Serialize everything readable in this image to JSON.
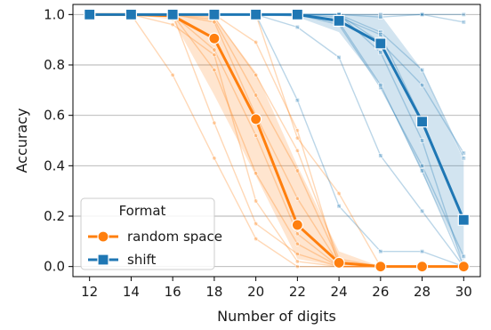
{
  "chart_data": {
    "type": "line",
    "xlabel": "Number of digits",
    "ylabel": "Accuracy",
    "x": [
      12,
      14,
      16,
      18,
      20,
      22,
      24,
      26,
      28,
      30
    ],
    "xlim": [
      11.2,
      30.8
    ],
    "ylim": [
      -0.04,
      1.04
    ],
    "xticks": [
      "12",
      "14",
      "16",
      "18",
      "20",
      "22",
      "24",
      "26",
      "28",
      "30"
    ],
    "yticks": [
      "0.0",
      "0.2",
      "0.4",
      "0.6",
      "0.8",
      "1.0"
    ],
    "ytick_values": [
      0.0,
      0.2,
      0.4,
      0.6,
      0.8,
      1.0
    ],
    "grid": "horizontal",
    "legend": {
      "title": "Format",
      "placement": "lower-left",
      "entries": [
        "random space",
        "shift"
      ]
    },
    "series": [
      {
        "name": "random space",
        "color": "#ff7f0e",
        "marker": "circle",
        "values": [
          1.0,
          1.0,
          0.995,
          0.905,
          0.585,
          0.165,
          0.015,
          0.0,
          0.0,
          0.0
        ],
        "band_low": [
          1.0,
          1.0,
          0.98,
          0.68,
          0.36,
          0.03,
          0.0,
          0.0,
          0.0,
          0.0
        ],
        "band_high": [
          1.0,
          1.0,
          1.0,
          0.99,
          0.77,
          0.4,
          0.06,
          0.0,
          0.0,
          0.0
        ],
        "runs": [
          [
            1.0,
            1.0,
            1.0,
            1.0,
            1.0,
            0.51,
            0.29,
            0.0,
            0.0,
            0.0
          ],
          [
            1.0,
            1.0,
            1.0,
            1.0,
            0.89,
            0.54,
            0.0,
            0.0,
            0.0,
            0.0
          ],
          [
            1.0,
            1.0,
            1.0,
            0.99,
            0.76,
            0.46,
            0.03,
            0.0,
            0.0,
            0.0
          ],
          [
            1.0,
            1.0,
            1.0,
            0.98,
            0.68,
            0.38,
            0.02,
            0.0,
            0.0,
            0.0
          ],
          [
            1.0,
            1.0,
            1.0,
            0.97,
            0.6,
            0.27,
            0.01,
            0.0,
            0.0,
            0.0
          ],
          [
            1.0,
            1.0,
            1.0,
            0.86,
            0.52,
            0.13,
            0.0,
            0.0,
            0.0,
            0.0
          ],
          [
            1.0,
            1.0,
            1.0,
            0.78,
            0.37,
            0.09,
            0.0,
            0.0,
            0.0,
            0.0
          ],
          [
            1.0,
            1.0,
            1.0,
            0.57,
            0.17,
            0.05,
            0.0,
            0.0,
            0.0,
            0.0
          ],
          [
            1.0,
            1.0,
            0.76,
            0.43,
            0.11,
            0.0,
            0.0,
            0.0,
            0.0,
            0.0
          ],
          [
            1.0,
            1.0,
            0.96,
            0.84,
            0.26,
            0.02,
            0.0,
            0.0,
            0.0,
            0.0
          ]
        ]
      },
      {
        "name": "shift",
        "color": "#1f77b4",
        "marker": "square",
        "values": [
          1.0,
          1.0,
          1.0,
          1.0,
          1.0,
          1.0,
          0.975,
          0.885,
          0.575,
          0.185
        ],
        "band_low": [
          1.0,
          1.0,
          1.0,
          1.0,
          1.0,
          0.99,
          0.93,
          0.72,
          0.37,
          0.02
        ],
        "band_high": [
          1.0,
          1.0,
          1.0,
          1.0,
          1.0,
          1.0,
          1.0,
          1.0,
          0.78,
          0.42
        ],
        "runs": [
          [
            1.0,
            1.0,
            1.0,
            1.0,
            1.0,
            1.0,
            1.0,
            1.0,
            1.0,
            1.0
          ],
          [
            1.0,
            1.0,
            1.0,
            1.0,
            1.0,
            1.0,
            1.0,
            0.99,
            1.0,
            0.97
          ],
          [
            1.0,
            1.0,
            1.0,
            1.0,
            1.0,
            1.0,
            1.0,
            0.89,
            0.72,
            0.45
          ],
          [
            1.0,
            1.0,
            1.0,
            1.0,
            1.0,
            1.0,
            1.0,
            0.93,
            0.78,
            0.43
          ],
          [
            1.0,
            1.0,
            1.0,
            1.0,
            1.0,
            1.0,
            1.0,
            0.85,
            0.5,
            0.0
          ],
          [
            1.0,
            1.0,
            1.0,
            1.0,
            1.0,
            1.0,
            0.96,
            0.71,
            0.4,
            0.04
          ],
          [
            1.0,
            1.0,
            1.0,
            1.0,
            1.0,
            1.0,
            0.97,
            0.72,
            0.38,
            0.0
          ],
          [
            1.0,
            1.0,
            1.0,
            1.0,
            1.0,
            0.95,
            0.83,
            0.44,
            0.22,
            0.0
          ],
          [
            1.0,
            1.0,
            1.0,
            1.0,
            1.0,
            0.66,
            0.24,
            0.06,
            0.06,
            0.0
          ],
          [
            1.0,
            1.0,
            1.0,
            1.0,
            1.0,
            1.0,
            0.99,
            0.92,
            0.58,
            0.19
          ]
        ]
      }
    ]
  }
}
